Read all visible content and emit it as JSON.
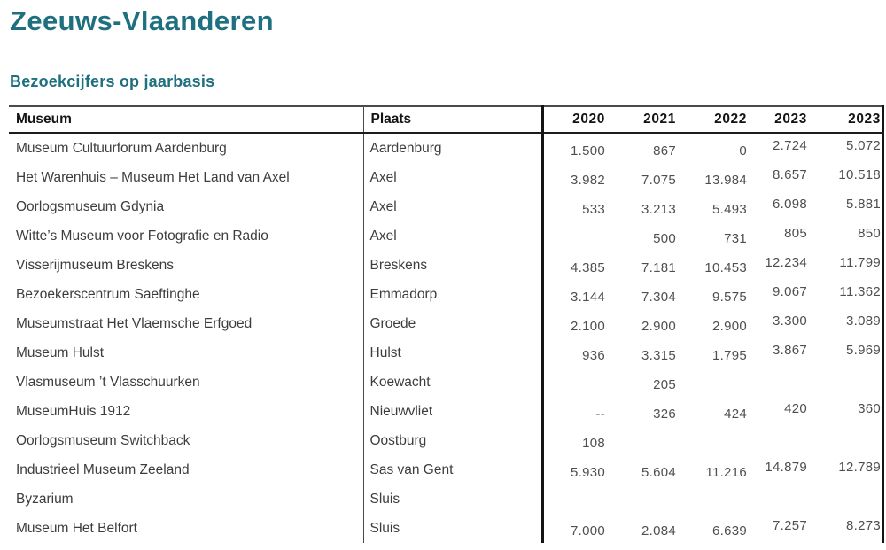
{
  "page": {
    "title": "Zeeuws-Vlaanderen",
    "subtitle": "Bezoekcijfers op jaarbasis",
    "accent_color": "#1e6f7f",
    "border_color": "#141414"
  },
  "table": {
    "columns": [
      "Museum",
      "Plaats",
      "2020",
      "2021",
      "2022",
      "2023",
      "2023"
    ],
    "rows": [
      {
        "museum": "Museum Cultuurforum Aardenburg",
        "plaats": "Aardenburg",
        "values": [
          "1.500",
          "867",
          "0",
          "2.724",
          "5.072"
        ]
      },
      {
        "museum": "Het Warenhuis – Museum Het Land van Axel",
        "plaats": "Axel",
        "values": [
          "3.982",
          "7.075",
          "13.984",
          "8.657",
          "10.518"
        ]
      },
      {
        "museum": "Oorlogsmuseum Gdynia",
        "plaats": "Axel",
        "values": [
          "533",
          "3.213",
          "5.493",
          "6.098",
          "5.881"
        ]
      },
      {
        "museum": "Witte’s Museum voor Fotografie en Radio",
        "plaats": "Axel",
        "values": [
          "",
          "500",
          "731",
          "805",
          "850"
        ]
      },
      {
        "museum": "Visserijmuseum Breskens",
        "plaats": "Breskens",
        "values": [
          "4.385",
          "7.181",
          "10.453",
          "12.234",
          "11.799"
        ]
      },
      {
        "museum": "Bezoekerscentrum Saeftinghe",
        "plaats": "Emmadorp",
        "values": [
          "3.144",
          "7.304",
          "9.575",
          "9.067",
          "11.362"
        ]
      },
      {
        "museum": "Museumstraat Het Vlaemsche Erfgoed",
        "plaats": "Groede",
        "values": [
          "2.100",
          "2.900",
          "2.900",
          "3.300",
          "3.089"
        ]
      },
      {
        "museum": "Museum Hulst",
        "plaats": "Hulst",
        "values": [
          "936",
          "3.315",
          "1.795",
          "3.867",
          "5.969"
        ]
      },
      {
        "museum": "Vlasmuseum ’t Vlasschuurken",
        "plaats": "Koewacht",
        "values": [
          "",
          "205",
          "",
          "",
          ""
        ]
      },
      {
        "museum": "MuseumHuis 1912",
        "plaats": "Nieuwvliet",
        "values": [
          "--",
          "326",
          "424",
          "420",
          "360"
        ]
      },
      {
        "museum": "Oorlogsmuseum Switchback",
        "plaats": "Oostburg",
        "values": [
          "108",
          "",
          "",
          "",
          ""
        ]
      },
      {
        "museum": "Industrieel Museum Zeeland",
        "plaats": "Sas van Gent",
        "values": [
          "5.930",
          "5.604",
          "11.216",
          "14.879",
          "12.789"
        ]
      },
      {
        "museum": "Byzarium",
        "plaats": "Sluis",
        "values": [
          "",
          "",
          "",
          "",
          ""
        ]
      },
      {
        "museum": "Museum Het Belfort",
        "plaats": "Sluis",
        "values": [
          "7.000",
          "2.084",
          "6.639",
          "7.257",
          "8.273"
        ]
      }
    ]
  }
}
